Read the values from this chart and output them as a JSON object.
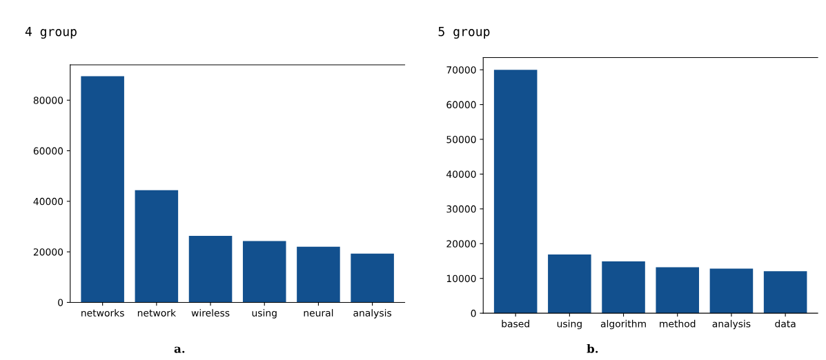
{
  "chart_data": [
    {
      "type": "bar",
      "title": "4 group",
      "categories": [
        "networks",
        "network",
        "wireless",
        "using",
        "neural",
        "analysis"
      ],
      "values": [
        89500,
        44400,
        26300,
        24300,
        22000,
        19300
      ],
      "color": "#12508e",
      "ylim": [
        0,
        94000
      ],
      "yticks": [
        0,
        20000,
        40000,
        60000,
        80000
      ],
      "grid": false,
      "annotations": [
        "a."
      ]
    },
    {
      "type": "bar",
      "title": "5 group",
      "categories": [
        "based",
        "using",
        "algorithm",
        "method",
        "analysis",
        "data"
      ],
      "values": [
        70000,
        16900,
        14900,
        13200,
        12800,
        12100
      ],
      "color": "#12508e",
      "ylim": [
        0,
        73500
      ],
      "yticks": [
        0,
        10000,
        20000,
        30000,
        40000,
        50000,
        60000,
        70000
      ],
      "grid": false,
      "annotations": [
        "b."
      ]
    }
  ]
}
